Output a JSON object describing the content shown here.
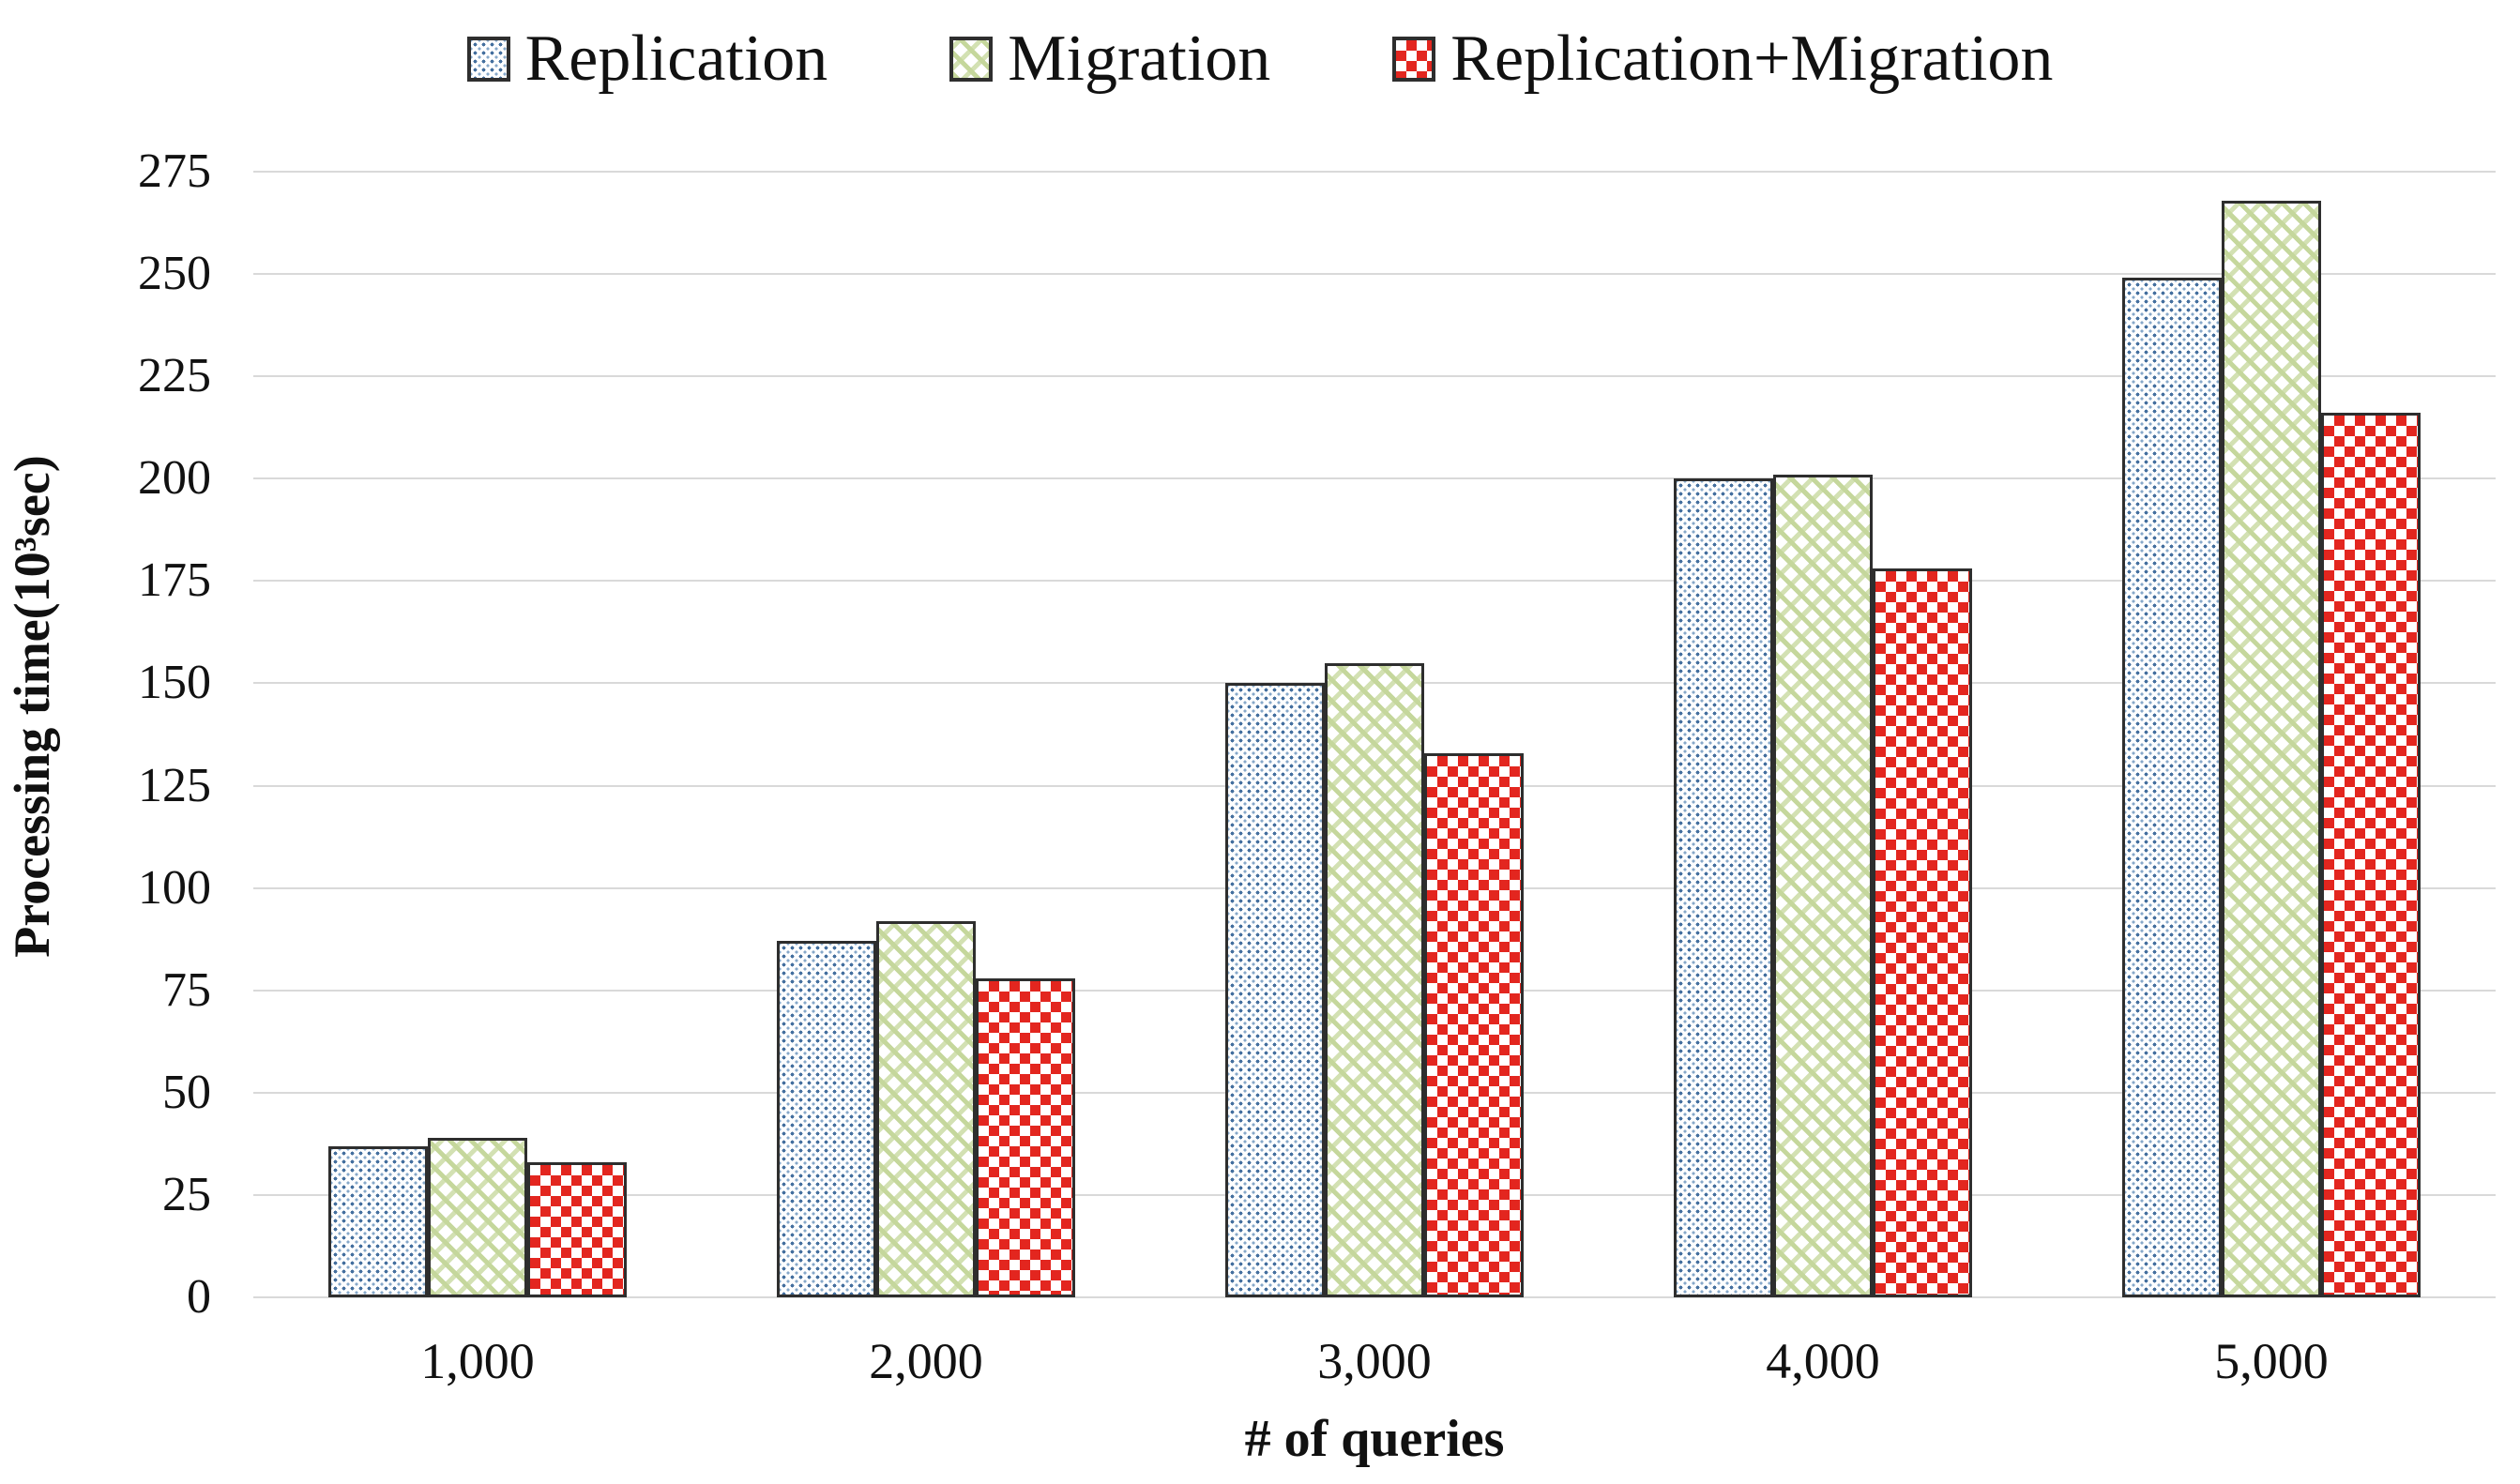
{
  "page": {
    "background": "#ffffff"
  },
  "chart_data": {
    "type": "bar",
    "title": "",
    "categories": [
      "1,000",
      "2,000",
      "3,000",
      "4,000",
      "5,000"
    ],
    "series": [
      {
        "name": "Replication",
        "pattern": "blue-dots",
        "color": "#45709f",
        "values": [
          37,
          87,
          150,
          200,
          249
        ]
      },
      {
        "name": "Migration",
        "pattern": "green-weave",
        "color": "#c3d69b",
        "values": [
          39,
          92,
          155,
          201,
          268
        ]
      },
      {
        "name": "Replication+Migration",
        "pattern": "red-checker",
        "color": "#e3261f",
        "values": [
          33,
          78,
          133,
          178,
          216
        ]
      }
    ],
    "xlabel": "# of queries",
    "ylabel": "Processing time(10³sec)",
    "ylim": [
      0,
      275
    ],
    "ytick_step": 25,
    "yticks": [
      0,
      25,
      50,
      75,
      100,
      125,
      150,
      175,
      200,
      225,
      250,
      275
    ],
    "legend_position": "top",
    "grid": "horizontal",
    "gridline_color": "#d9d9d9",
    "bar_border_color": "#2e2e2e",
    "text_color": "#111111"
  }
}
